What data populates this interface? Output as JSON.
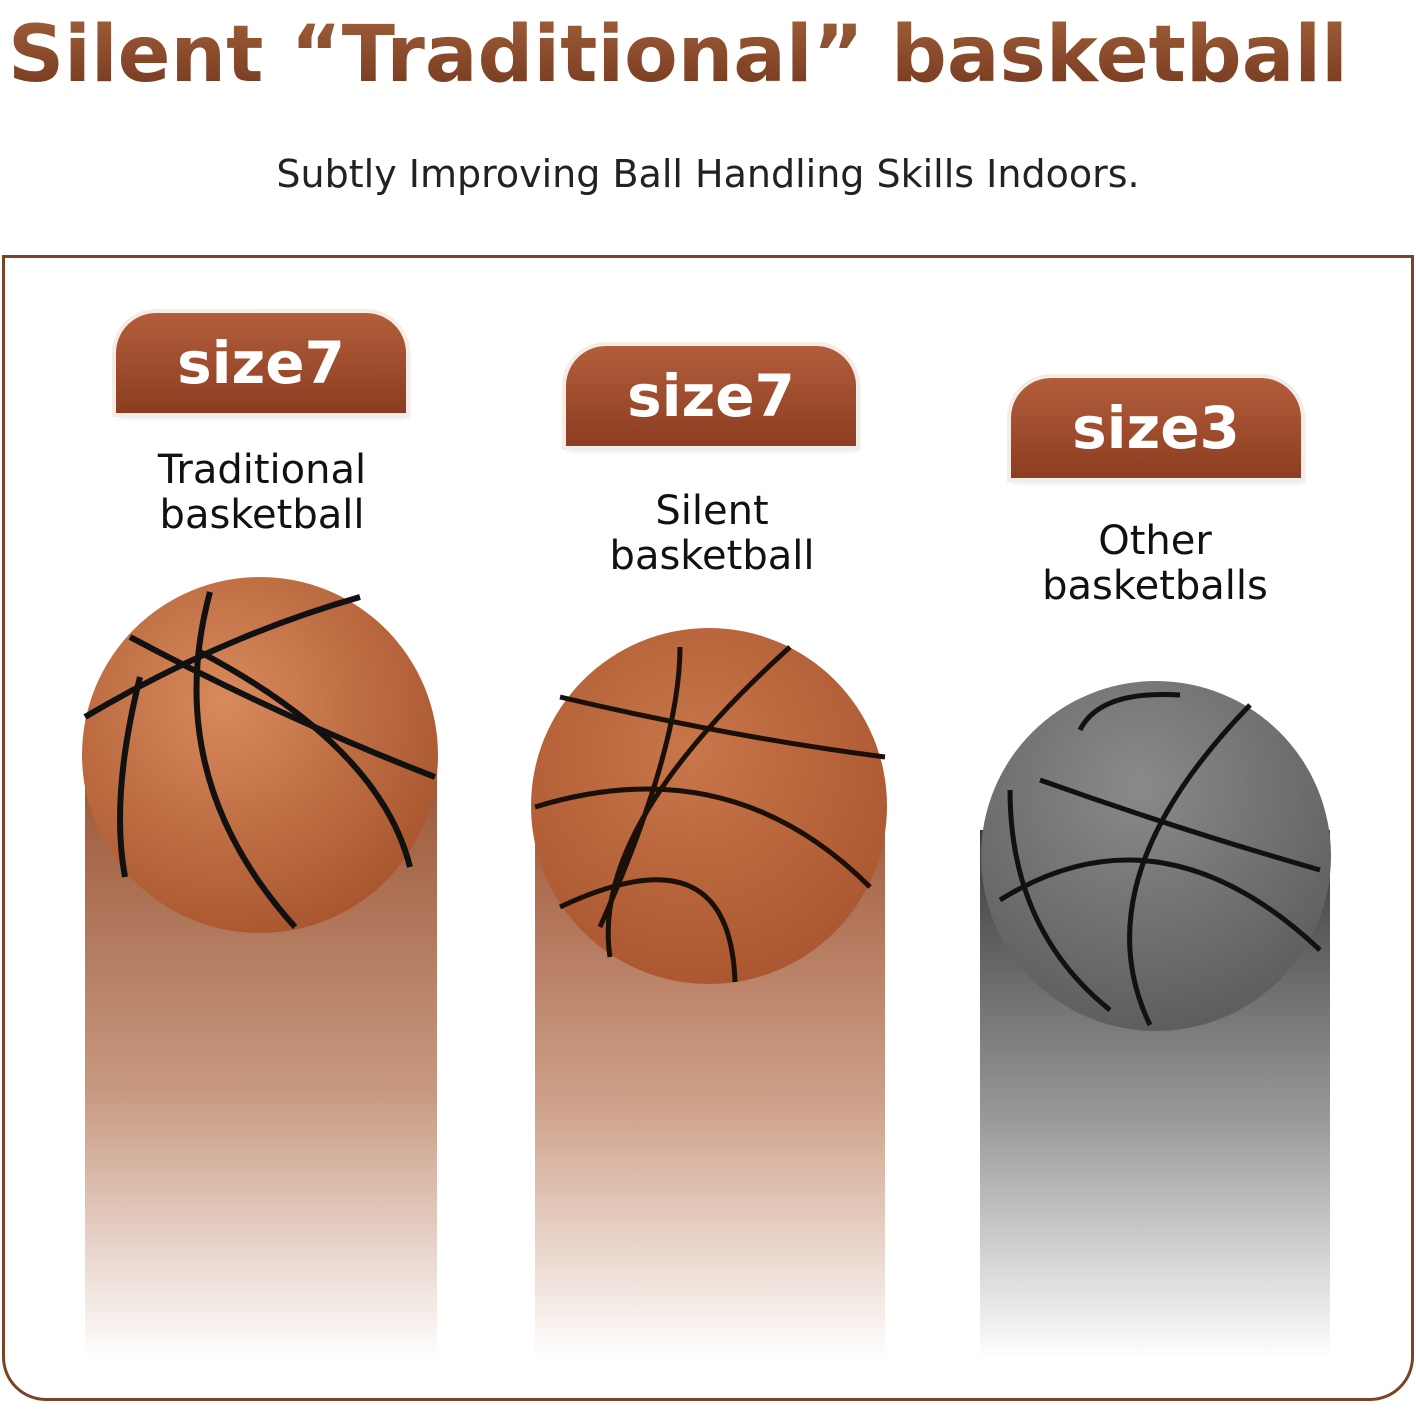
{
  "title": "Silent “Traditional”  basketball",
  "subtitle": "Subtly Improving Ball Handling Skills Indoors.",
  "columns": [
    {
      "size": "size7",
      "label_line1": "Traditional",
      "label_line2": "basketball",
      "color": "#c46f45"
    },
    {
      "size": "size7",
      "label_line1": "Silent",
      "label_line2": "basketball",
      "color": "#b9633b"
    },
    {
      "size": "size3",
      "label_line1": "Other",
      "label_line2": "basketballs",
      "color": "#6f6f6f"
    }
  ]
}
